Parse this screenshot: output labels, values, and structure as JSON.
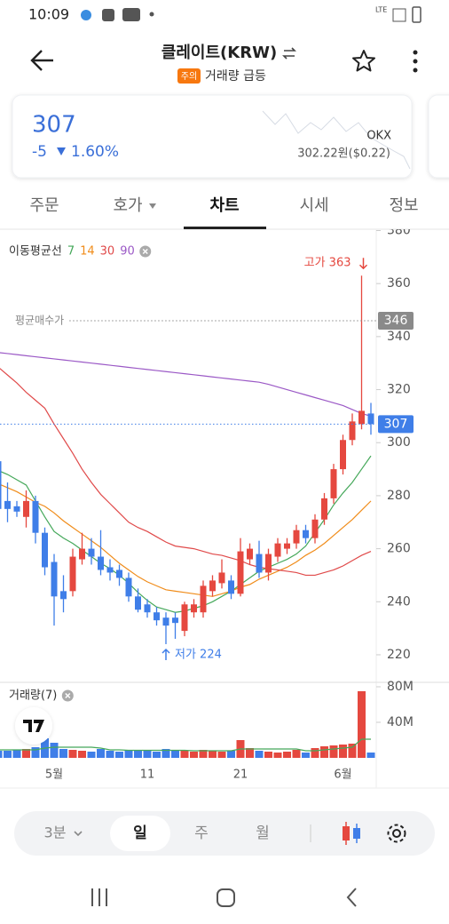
{
  "status_bar": {
    "time": "10:09",
    "network": "LTE"
  },
  "header": {
    "title": "클레이트(KRW)",
    "badge": "주의",
    "badge_text": "거래량 급등"
  },
  "price_card": {
    "price": "307",
    "change": "-5",
    "change_pct": "1.60%",
    "exchange": "OKX",
    "ref_price": "302.22원($0.22)"
  },
  "tabs": [
    "주문",
    "호가",
    "차트",
    "시세",
    "정보"
  ],
  "chart_data": [
    {
      "type": "candlestick",
      "legend_title": "이동평균선",
      "categories": [
        null,
        null,
        null,
        null,
        null,
        null,
        "5월",
        null,
        null,
        null,
        null,
        null,
        null,
        null,
        null,
        null,
        "11",
        null,
        null,
        null,
        null,
        null,
        null,
        null,
        null,
        null,
        "21",
        null,
        null,
        null,
        null,
        null,
        null,
        null,
        null,
        null,
        null,
        "6월",
        null,
        null,
        null
      ],
      "open": [
        293,
        278,
        276,
        272,
        278,
        266,
        255,
        244,
        244,
        256,
        260,
        257,
        253,
        252,
        249,
        242,
        239,
        236,
        234,
        234,
        229,
        236,
        236,
        244,
        247,
        248,
        243,
        256,
        258,
        251,
        257,
        260,
        262,
        267,
        264,
        271,
        279,
        290,
        301,
        307,
        311
      ],
      "high": [
        296,
        285,
        278,
        282,
        280,
        268,
        258,
        250,
        260,
        266,
        264,
        267,
        256,
        254,
        251,
        245,
        241,
        238,
        236,
        236,
        240,
        241,
        248,
        250,
        256,
        250,
        264,
        262,
        263,
        260,
        264,
        264,
        269,
        269,
        273,
        281,
        292,
        303,
        311,
        363,
        315
      ],
      "low": [
        272,
        270,
        272,
        268,
        262,
        250,
        231,
        236,
        242,
        254,
        254,
        250,
        248,
        246,
        240,
        236,
        234,
        231,
        224,
        226,
        227,
        234,
        234,
        242,
        245,
        241,
        242,
        254,
        249,
        248,
        255,
        258,
        260,
        262,
        262,
        269,
        277,
        288,
        299,
        305,
        303
      ],
      "close": [
        275,
        275,
        274,
        278,
        266,
        253,
        242,
        241,
        257,
        260,
        257,
        252,
        251,
        249,
        242,
        237,
        236,
        233,
        231,
        232,
        239,
        239,
        246,
        248,
        251,
        243,
        259,
        260,
        251,
        258,
        262,
        262,
        267,
        264,
        271,
        279,
        290,
        301,
        308,
        312,
        307
      ],
      "up_color": "#e5483f",
      "down_color": "#3f7ee8",
      "ylim": [
        209.6,
        380.5
      ],
      "yticks": [
        220,
        240,
        260,
        280,
        300,
        320,
        340,
        360,
        380
      ],
      "series": [
        {
          "name": "7",
          "color": "#45a85a",
          "values": [
            289.5,
            288,
            286,
            284,
            278,
            272,
            266.5,
            264,
            262,
            259.5,
            257,
            254.5,
            252.5,
            250,
            247,
            243.5,
            240.5,
            238,
            237,
            236,
            236.5,
            237.5,
            238.5,
            240,
            242,
            244,
            246.5,
            249,
            251.5,
            253,
            254.5,
            256,
            258,
            261,
            266,
            271,
            276.5,
            281,
            285,
            290,
            295
          ]
        },
        {
          "name": "14",
          "color": "#f08c1a",
          "values": [
            284.5,
            283,
            281.5,
            279.5,
            277.5,
            276,
            273.5,
            270.5,
            268,
            265.5,
            263,
            260.5,
            257.5,
            254.5,
            252,
            249.5,
            247.5,
            246,
            244.5,
            244,
            243.5,
            243,
            242.5,
            242,
            243,
            244,
            245.5,
            246.5,
            248.5,
            250,
            251.5,
            253,
            255,
            257.5,
            259.5,
            262,
            265,
            268,
            271,
            274.5,
            278
          ]
        },
        {
          "name": "30",
          "color": "#e04a4a",
          "values": [
            328.5,
            325.5,
            322.5,
            319,
            316,
            313,
            307,
            301.5,
            296,
            290,
            285,
            280.5,
            277,
            273.5,
            270,
            268,
            266.5,
            264.5,
            262.5,
            261,
            260.5,
            260,
            259,
            258,
            257.5,
            256.5,
            255.5,
            254,
            253,
            252.5,
            252,
            251.5,
            251,
            250,
            250,
            251,
            252,
            253.5,
            255.5,
            257.5,
            259
          ]
        },
        {
          "name": "90",
          "color": "#9b59c6",
          "values": [
            334,
            333.6,
            333.2,
            332.8,
            332.4,
            332,
            331.6,
            331.2,
            330.8,
            330.4,
            330,
            329.6,
            329.2,
            328.8,
            328.4,
            328,
            327.6,
            327.2,
            326.8,
            326.4,
            326,
            325.6,
            325.2,
            324.8,
            324.4,
            324,
            323.6,
            323.2,
            322.8,
            322,
            321,
            320,
            319,
            318,
            317,
            316,
            315,
            314,
            312.5,
            311,
            310
          ]
        }
      ],
      "price_lines": [
        {
          "label": "평균매수가",
          "value": 346,
          "color": "#8a8a8a"
        },
        {
          "value": 307,
          "color": "#3f7ee8"
        }
      ],
      "high_label": "고가 363",
      "low_label": "저가 224"
    },
    {
      "type": "bar",
      "title": "거래량(7)",
      "values": [
        8,
        8,
        9,
        10,
        12,
        22,
        17,
        10,
        9,
        8,
        7,
        10,
        8,
        7,
        9,
        8,
        9,
        7,
        10,
        9,
        8,
        7,
        9,
        8,
        7,
        8,
        20,
        11,
        8,
        7,
        6,
        7,
        9,
        6,
        11,
        13,
        14,
        15,
        16,
        75,
        6
      ],
      "ylim": [
        0,
        85
      ],
      "yticks": [
        {
          "value": 40,
          "label": "40M"
        },
        {
          "value": 80,
          "label": "80M"
        }
      ],
      "series": [
        {
          "color": "#45a85a",
          "values": [
            9,
            9,
            9,
            9,
            9,
            11,
            12,
            12,
            12,
            12,
            12,
            11,
            9,
            9,
            8.5,
            8.5,
            8.5,
            8.5,
            8.5,
            8.5,
            8.5,
            8,
            8,
            8,
            8,
            8,
            10,
            10,
            10,
            10,
            10,
            10,
            10,
            8,
            8,
            9,
            10,
            11,
            12,
            21,
            21
          ]
        }
      ]
    }
  ],
  "toolbar": {
    "interval": "3분",
    "periods": [
      "일",
      "주",
      "월"
    ]
  }
}
